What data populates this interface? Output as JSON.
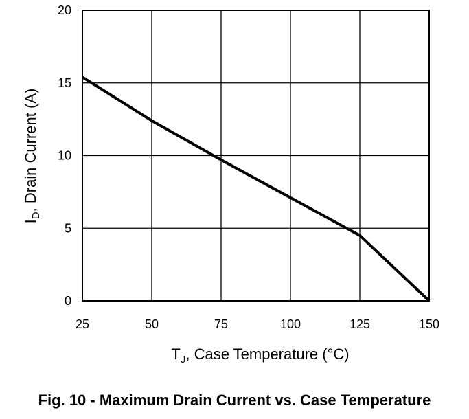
{
  "chart_data": {
    "type": "line",
    "caption": "Fig. 10 - Maximum Drain Current vs. Case Temperature",
    "xlabel": {
      "main": "T",
      "sub": "J",
      "rest": ", Case Temperature (°C)"
    },
    "ylabel": {
      "main": "I",
      "sub": "D",
      "rest": ", Drain Current (A)"
    },
    "xlim": [
      25,
      150
    ],
    "ylim": [
      0,
      20
    ],
    "x_ticks": [
      "25",
      "50",
      "75",
      "100",
      "125",
      "150"
    ],
    "y_ticks": [
      "0",
      "5",
      "10",
      "15",
      "20"
    ],
    "grid": true,
    "series": [
      {
        "name": "Maximum Drain Current",
        "x": [
          25,
          50,
          75,
          100,
          125,
          150
        ],
        "y": [
          15.4,
          12.4,
          9.7,
          7.1,
          4.5,
          0
        ]
      }
    ]
  }
}
